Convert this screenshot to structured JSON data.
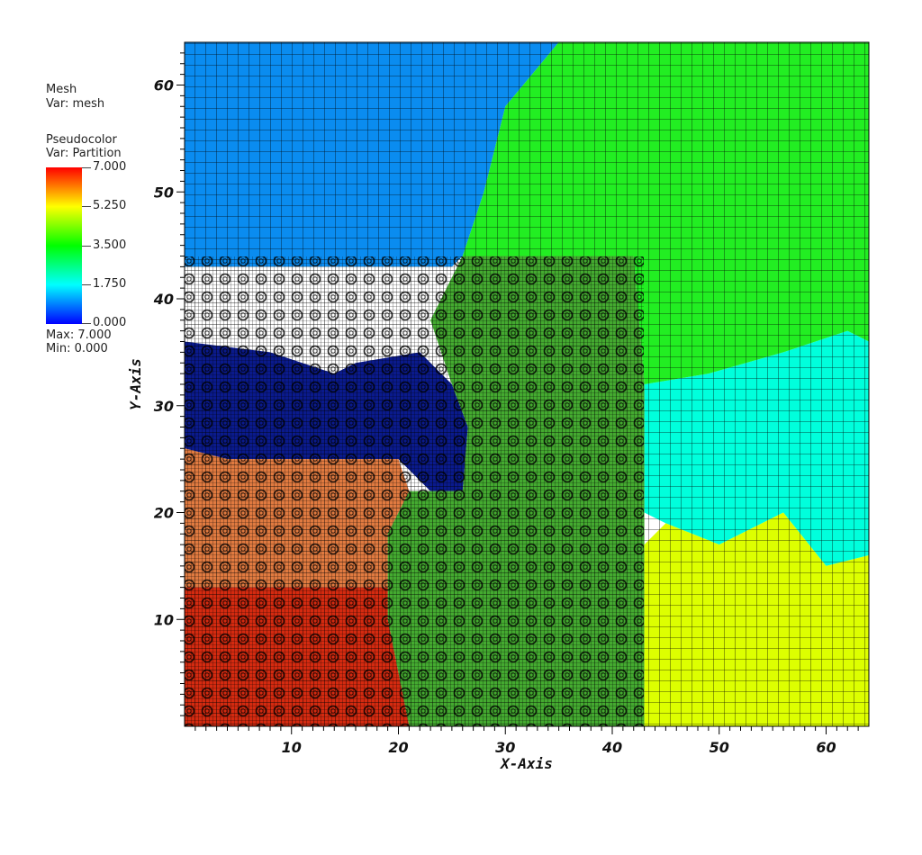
{
  "legend": {
    "mesh_title": "Mesh",
    "mesh_var": "Var: mesh",
    "pc_title": "Pseudocolor",
    "pc_var": "Var: Partition",
    "bar_labels": [
      "7.000",
      "5.250",
      "3.500",
      "1.750",
      "0.000"
    ],
    "max_text": "Max:  7.000",
    "min_text": "Min:  0.000"
  },
  "chart_data": {
    "type": "heatmap",
    "title": "",
    "xlabel": "X-Axis",
    "ylabel": "Y-Axis",
    "xlim": [
      0,
      64
    ],
    "ylim": [
      0,
      64
    ],
    "xticks": [
      10,
      20,
      30,
      40,
      50,
      60
    ],
    "yticks": [
      10,
      20,
      30,
      40,
      50,
      60
    ],
    "colorbar": {
      "min": 0.0,
      "max": 7.0,
      "stops": [
        "#0000ff",
        "#00ffff",
        "#00ff00",
        "#ffff00",
        "#ff0000"
      ]
    },
    "partitions": [
      {
        "value": 0,
        "color": "#0a1a8c",
        "region": [
          [
            0,
            36
          ],
          [
            8,
            35
          ],
          [
            14,
            33
          ],
          [
            16,
            34
          ],
          [
            22,
            35
          ],
          [
            25,
            32
          ],
          [
            26.5,
            28
          ],
          [
            26,
            22
          ],
          [
            23,
            22
          ],
          [
            20,
            25
          ],
          [
            15,
            25
          ],
          [
            10,
            25
          ],
          [
            4,
            25
          ],
          [
            0,
            26
          ]
        ]
      },
      {
        "value": 1,
        "color": "#0a8cf0",
        "region": [
          [
            0,
            64
          ],
          [
            35,
            64
          ],
          [
            30,
            58
          ],
          [
            28,
            50
          ],
          [
            26,
            44
          ],
          [
            25,
            43
          ],
          [
            20,
            43
          ],
          [
            10,
            43
          ],
          [
            0,
            43
          ]
        ]
      },
      {
        "value": 2,
        "color": "#00ffdc",
        "region": [
          [
            43,
            32
          ],
          [
            49,
            33
          ],
          [
            56,
            35
          ],
          [
            62,
            37
          ],
          [
            64,
            36
          ],
          [
            64,
            16
          ],
          [
            60,
            15
          ],
          [
            56,
            20
          ],
          [
            50,
            17
          ],
          [
            45,
            19
          ],
          [
            43,
            20
          ]
        ]
      },
      {
        "value": 3,
        "color": "#22ee22",
        "region": [
          [
            35,
            64
          ],
          [
            64,
            64
          ],
          [
            64,
            36
          ],
          [
            62,
            37
          ],
          [
            56,
            35
          ],
          [
            49,
            33
          ],
          [
            43,
            32
          ],
          [
            42,
            44
          ],
          [
            35,
            44
          ],
          [
            26,
            44
          ],
          [
            28,
            50
          ],
          [
            30,
            58
          ]
        ]
      },
      {
        "value": 4,
        "color": "#44aa30",
        "region": [
          [
            26,
            44
          ],
          [
            42,
            44
          ],
          [
            43,
            32
          ],
          [
            43,
            20
          ],
          [
            43,
            17
          ],
          [
            43,
            0
          ],
          [
            21,
            0
          ],
          [
            19,
            10
          ],
          [
            19,
            18
          ],
          [
            21,
            22
          ],
          [
            23,
            22
          ],
          [
            26,
            22
          ],
          [
            26.5,
            28
          ],
          [
            25,
            32
          ],
          [
            23,
            38
          ]
        ]
      },
      {
        "value": 5,
        "color": "#ddff00",
        "region": [
          [
            43,
            0
          ],
          [
            64,
            0
          ],
          [
            64,
            16
          ],
          [
            60,
            15
          ],
          [
            56,
            20
          ],
          [
            50,
            17
          ],
          [
            45,
            19
          ],
          [
            43,
            17
          ]
        ]
      },
      {
        "value": 6,
        "color": "#e07a40",
        "region": [
          [
            0,
            26
          ],
          [
            4,
            25
          ],
          [
            10,
            25
          ],
          [
            15,
            25
          ],
          [
            20,
            25
          ],
          [
            21,
            22
          ],
          [
            19,
            18
          ],
          [
            19,
            13
          ],
          [
            12,
            13
          ],
          [
            0,
            13
          ]
        ]
      },
      {
        "value": 7,
        "color": "#d42a10",
        "region": [
          [
            0,
            13
          ],
          [
            12,
            13
          ],
          [
            19,
            13
          ],
          [
            19,
            10
          ],
          [
            21,
            0
          ],
          [
            0,
            0
          ]
        ]
      }
    ]
  }
}
